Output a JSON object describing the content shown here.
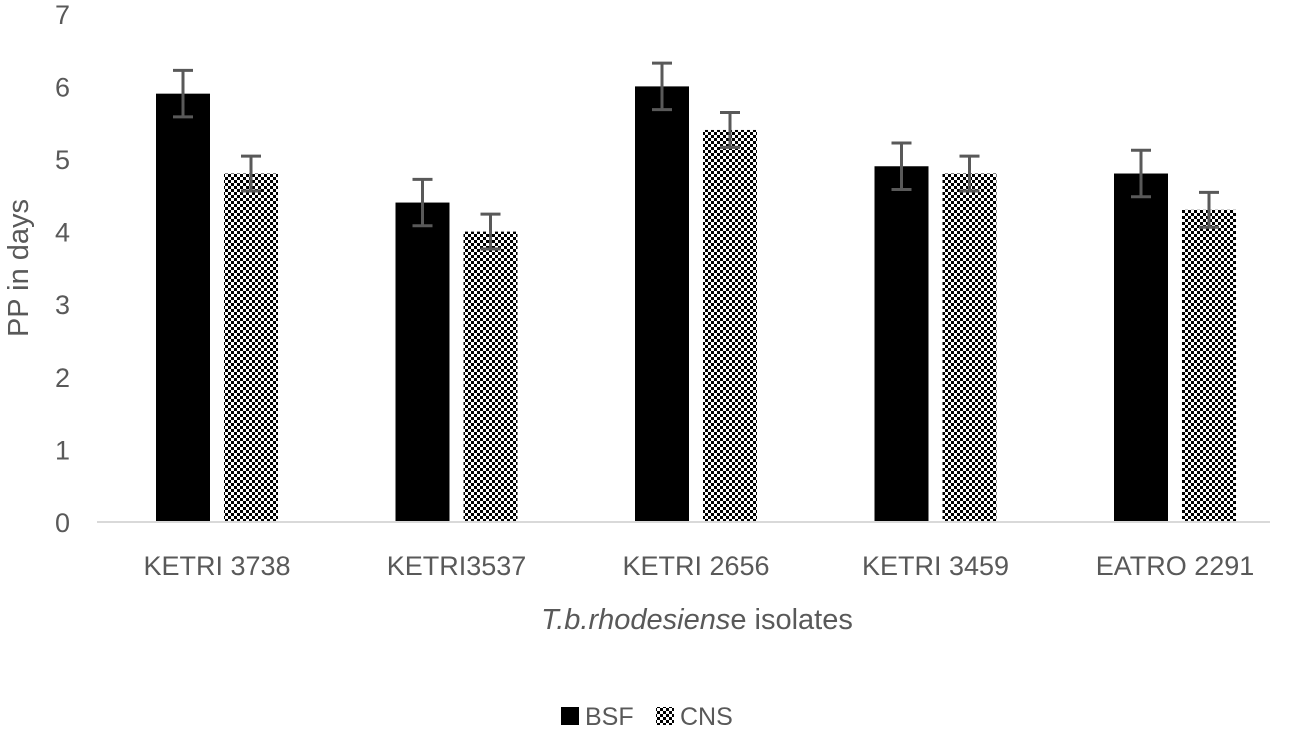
{
  "chart_data": {
    "type": "bar",
    "categories": [
      "KETRI 3738",
      "KETRI3537",
      "KETRI 2656",
      "KETRI 3459",
      "EATRO 2291"
    ],
    "series": [
      {
        "name": "BSF",
        "values": [
          5.9,
          4.4,
          6.0,
          4.9,
          4.8
        ],
        "errors": [
          0.32,
          0.32,
          0.32,
          0.32,
          0.32
        ],
        "color": "#000000",
        "pattern": "solid"
      },
      {
        "name": "CNS",
        "values": [
          4.8,
          4.0,
          5.4,
          4.8,
          4.3
        ],
        "errors": [
          0.24,
          0.24,
          0.24,
          0.24,
          0.24
        ],
        "color": "#000000",
        "pattern": "checker"
      }
    ],
    "xlabel_italic": "T.b.rhodesiens",
    "xlabel_rest": "e isolates",
    "ylabel": "PP in days",
    "ylim": [
      0,
      7
    ],
    "yticks": [
      "0",
      "1",
      "2",
      "3",
      "4",
      "5",
      "6",
      "7"
    ],
    "grid": false,
    "legend_position": "bottom-center",
    "error_bar_color": "#595959",
    "axis_color": "#d9d9d9"
  }
}
